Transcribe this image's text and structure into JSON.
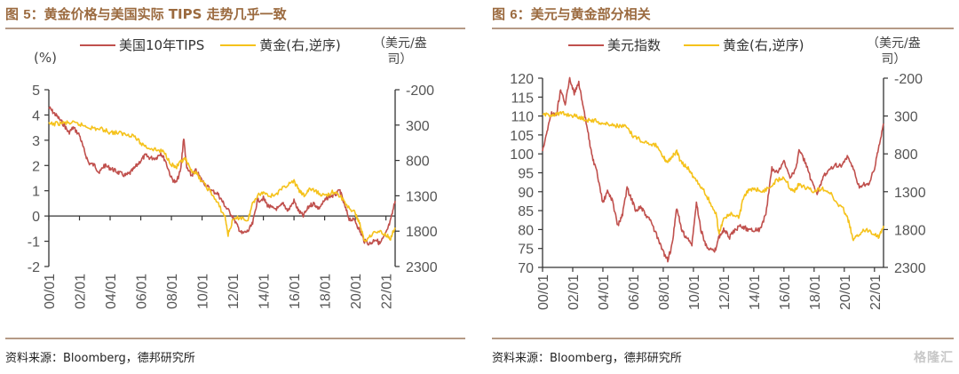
{
  "chart_data": [
    {
      "type": "line",
      "title_prefix": "图 ",
      "title_num": "5",
      "title_rest": "：黄金价格与美国实际 TIPS 走势几乎一致",
      "source": "资料来源：Bloomberg，德邦研究所",
      "left_axis_label": "(%)",
      "right_axis_label_line1": "（美元/盎",
      "right_axis_label_line2": "司）",
      "legend": [
        {
          "name": "美国10年TIPS",
          "color": "#c0504d"
        },
        {
          "name": "黄金(右,逆序)",
          "color": "#f5b400"
        }
      ],
      "x_ticks": [
        "00/01",
        "02/01",
        "04/01",
        "06/01",
        "08/01",
        "10/01",
        "12/01",
        "14/01",
        "16/01",
        "18/01",
        "20/01",
        "22/01"
      ],
      "x_range": [
        2000.0,
        2022.6
      ],
      "yleft_ticks": [
        "5",
        "4",
        "3",
        "2",
        "1",
        "0",
        "-1",
        "-2"
      ],
      "yleft_range": [
        -2,
        5
      ],
      "yright_ticks": [
        "-200",
        "300",
        "800",
        "1300",
        "1800",
        "2300"
      ],
      "yright_range": [
        2300,
        -200
      ],
      "yright_inverted": true,
      "series": [
        {
          "name": "美国10年TIPS",
          "axis": "left",
          "color": "#c0504d",
          "x": [
            2000.0,
            2000.3,
            2000.6,
            2001.0,
            2001.3,
            2001.6,
            2002.0,
            2002.3,
            2002.6,
            2003.0,
            2003.3,
            2003.6,
            2004.0,
            2004.3,
            2004.6,
            2005.0,
            2005.3,
            2005.6,
            2006.0,
            2006.3,
            2006.6,
            2007.0,
            2007.3,
            2007.6,
            2008.0,
            2008.3,
            2008.6,
            2008.8,
            2009.0,
            2009.3,
            2009.6,
            2010.0,
            2010.3,
            2010.6,
            2011.0,
            2011.3,
            2011.6,
            2012.0,
            2012.3,
            2012.6,
            2013.0,
            2013.3,
            2013.6,
            2014.0,
            2014.3,
            2014.6,
            2015.0,
            2015.3,
            2015.6,
            2016.0,
            2016.3,
            2016.6,
            2017.0,
            2017.3,
            2017.6,
            2018.0,
            2018.3,
            2018.6,
            2019.0,
            2019.3,
            2019.6,
            2020.0,
            2020.3,
            2020.6,
            2021.0,
            2021.3,
            2021.6,
            2022.0,
            2022.3,
            2022.6
          ],
          "y": [
            4.3,
            4.1,
            3.9,
            3.6,
            3.3,
            3.5,
            3.2,
            2.6,
            2.1,
            2.0,
            1.7,
            2.0,
            1.9,
            1.8,
            1.7,
            1.6,
            1.7,
            1.9,
            2.2,
            2.4,
            2.3,
            2.3,
            2.5,
            2.2,
            1.5,
            1.3,
            1.8,
            3.1,
            1.9,
            1.6,
            1.8,
            1.4,
            1.2,
            1.0,
            0.9,
            0.6,
            0.3,
            0.0,
            -0.4,
            -0.7,
            -0.6,
            -0.3,
            0.6,
            0.7,
            0.4,
            0.3,
            0.3,
            0.5,
            0.2,
            0.6,
            0.2,
            0.0,
            0.4,
            0.5,
            0.3,
            0.6,
            0.8,
            0.8,
            1.0,
            0.4,
            -0.1,
            -0.2,
            -0.6,
            -1.0,
            -1.1,
            -0.9,
            -1.1,
            -0.7,
            -0.2,
            0.6
          ]
        },
        {
          "name": "黄金(右,逆序)",
          "axis": "right",
          "color": "#f5b400",
          "x": [
            2000.0,
            2000.5,
            2001.0,
            2001.5,
            2002.0,
            2002.5,
            2003.0,
            2003.5,
            2004.0,
            2004.5,
            2005.0,
            2005.5,
            2006.0,
            2006.5,
            2007.0,
            2007.5,
            2008.0,
            2008.3,
            2008.6,
            2008.9,
            2009.2,
            2009.6,
            2010.0,
            2010.5,
            2011.0,
            2011.5,
            2011.7,
            2012.0,
            2012.5,
            2013.0,
            2013.3,
            2013.6,
            2014.0,
            2014.5,
            2015.0,
            2015.5,
            2016.0,
            2016.4,
            2016.7,
            2017.0,
            2017.5,
            2018.0,
            2018.5,
            2019.0,
            2019.5,
            2020.0,
            2020.3,
            2020.6,
            2021.0,
            2021.5,
            2022.0,
            2022.3,
            2022.6
          ],
          "y": [
            290,
            280,
            270,
            270,
            290,
            320,
            350,
            360,
            400,
            410,
            430,
            440,
            560,
            620,
            650,
            680,
            850,
            900,
            830,
            780,
            920,
            980,
            1100,
            1230,
            1400,
            1600,
            1850,
            1650,
            1600,
            1650,
            1400,
            1300,
            1250,
            1300,
            1250,
            1150,
            1100,
            1250,
            1300,
            1200,
            1250,
            1300,
            1250,
            1300,
            1450,
            1550,
            1700,
            1950,
            1850,
            1800,
            1850,
            1900,
            1750
          ]
        }
      ]
    },
    {
      "type": "line",
      "title_prefix": "图 ",
      "title_num": "6",
      "title_rest": "：美元与黄金部分相关",
      "source": "资料来源：Bloomberg，德邦研究所",
      "right_axis_label_line1": "（美元/盎",
      "right_axis_label_line2": "司）",
      "legend": [
        {
          "name": "美元指数",
          "color": "#c0504d"
        },
        {
          "name": "黄金(右,逆序)",
          "color": "#f5b400"
        }
      ],
      "x_ticks": [
        "00/01",
        "02/01",
        "04/01",
        "06/01",
        "08/01",
        "10/01",
        "12/01",
        "14/01",
        "16/01",
        "18/01",
        "20/01",
        "22/01"
      ],
      "x_range": [
        2000.0,
        2022.6
      ],
      "yleft_ticks": [
        "120",
        "115",
        "110",
        "105",
        "100",
        "95",
        "90",
        "85",
        "80",
        "75",
        "70"
      ],
      "yleft_range": [
        70,
        120
      ],
      "yright_ticks": [
        "-200",
        "300",
        "800",
        "1300",
        "1800",
        "2300"
      ],
      "yright_range": [
        2300,
        -200
      ],
      "yright_inverted": true,
      "series": [
        {
          "name": "美元指数",
          "axis": "left",
          "color": "#c0504d",
          "x": [
            2000.0,
            2000.3,
            2000.6,
            2000.9,
            2001.2,
            2001.5,
            2001.8,
            2002.1,
            2002.4,
            2002.7,
            2003.0,
            2003.3,
            2003.6,
            2004.0,
            2004.3,
            2004.6,
            2005.0,
            2005.3,
            2005.6,
            2005.9,
            2006.2,
            2006.5,
            2006.8,
            2007.2,
            2007.6,
            2008.0,
            2008.3,
            2008.6,
            2008.9,
            2009.2,
            2009.5,
            2009.9,
            2010.2,
            2010.5,
            2010.8,
            2011.1,
            2011.4,
            2011.7,
            2012.0,
            2012.4,
            2012.8,
            2013.2,
            2013.6,
            2014.0,
            2014.4,
            2014.8,
            2015.2,
            2015.6,
            2016.0,
            2016.4,
            2016.8,
            2017.0,
            2017.4,
            2017.8,
            2018.2,
            2018.6,
            2019.0,
            2019.4,
            2019.8,
            2020.2,
            2020.6,
            2021.0,
            2021.3,
            2021.6,
            2022.0,
            2022.3,
            2022.6
          ],
          "y": [
            101,
            106,
            111,
            110,
            117,
            113,
            120,
            116,
            119,
            112,
            106,
            99,
            95,
            87,
            90,
            88,
            81,
            84,
            91,
            88,
            85,
            86,
            84,
            82,
            78,
            74,
            72,
            76,
            86,
            80,
            78,
            76,
            87,
            80,
            76,
            75,
            74,
            78,
            80,
            78,
            80,
            81,
            80,
            80,
            80,
            84,
            96,
            95,
            98,
            94,
            96,
            101,
            98,
            93,
            89,
            94,
            96,
            97,
            97,
            99,
            96,
            91,
            92,
            92,
            96,
            102,
            108
          ]
        },
        {
          "name": "黄金(右,逆序)",
          "axis": "right",
          "color": "#f5b400",
          "x": [
            2000.0,
            2000.5,
            2001.0,
            2001.5,
            2002.0,
            2002.5,
            2003.0,
            2003.5,
            2004.0,
            2004.5,
            2005.0,
            2005.5,
            2006.0,
            2006.5,
            2007.0,
            2007.5,
            2008.0,
            2008.3,
            2008.6,
            2008.9,
            2009.2,
            2009.6,
            2010.0,
            2010.5,
            2011.0,
            2011.5,
            2011.7,
            2012.0,
            2012.5,
            2013.0,
            2013.3,
            2013.6,
            2014.0,
            2014.5,
            2015.0,
            2015.5,
            2016.0,
            2016.4,
            2016.7,
            2017.0,
            2017.5,
            2018.0,
            2018.5,
            2019.0,
            2019.5,
            2020.0,
            2020.3,
            2020.6,
            2021.0,
            2021.5,
            2022.0,
            2022.3,
            2022.6
          ],
          "y": [
            290,
            280,
            270,
            270,
            290,
            320,
            350,
            360,
            400,
            410,
            430,
            440,
            560,
            620,
            650,
            680,
            850,
            900,
            830,
            780,
            920,
            980,
            1100,
            1230,
            1400,
            1600,
            1850,
            1650,
            1600,
            1650,
            1400,
            1300,
            1250,
            1300,
            1250,
            1150,
            1100,
            1250,
            1300,
            1200,
            1250,
            1300,
            1250,
            1300,
            1450,
            1550,
            1700,
            1950,
            1850,
            1800,
            1850,
            1900,
            1750
          ]
        }
      ]
    }
  ],
  "watermark": "格隆汇"
}
